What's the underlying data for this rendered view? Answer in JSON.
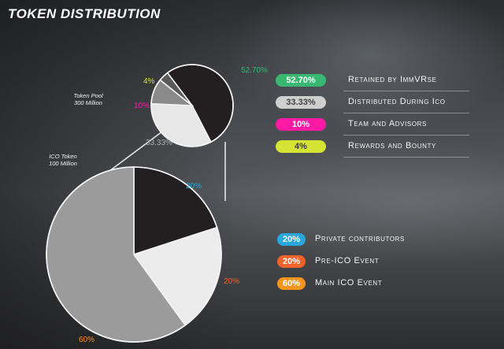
{
  "page": {
    "title": "TOKEN DISTRIBUTION"
  },
  "notes": {
    "pool_title": "Token Pool",
    "pool_amount": "300 Million",
    "ico_title": "ICO Token",
    "ico_amount": "100 Million"
  },
  "chart_data": [
    {
      "type": "pie",
      "title": "",
      "slices": [
        {
          "label": "Retained by ImmVRse",
          "value": 52.7,
          "pct_text": "52.70%",
          "color": "#231f20",
          "label_color": "#38b871",
          "pill_color": "#38b871",
          "pill_text_color": "#ffffff"
        },
        {
          "label": "Distributed During Ico",
          "value": 33.33,
          "pct_text": "33.33%",
          "color": "#e7e7e7",
          "label_color": "#b0b0b0",
          "pill_color": "#cfcfcf",
          "pill_text_color": "#444444"
        },
        {
          "label": "Team and Advisors",
          "value": 10,
          "pct_text": "10%",
          "color": "#8a8a8a",
          "label_color": "#ff1aa6",
          "pill_color": "#ff1aa6",
          "pill_text_color": "#ffffff"
        },
        {
          "label": "Rewards and Bounty",
          "value": 4,
          "pct_text": "4%",
          "color": "#5a5a5a",
          "label_color": "#d5e335",
          "pill_color": "#d5e335",
          "pill_text_color": "#3a3a3a"
        }
      ]
    },
    {
      "type": "pie",
      "title": "",
      "slices": [
        {
          "label": "Private contributors",
          "value": 20,
          "pct_text": "20%",
          "color": "#231f20",
          "label_color": "#29a8e0",
          "pill_color": "#29a8e0",
          "pill_text_color": "#ffffff"
        },
        {
          "label": "Pre-ICO Event",
          "value": 20,
          "pct_text": "20%",
          "color": "#ececec",
          "label_color": "#f0632a",
          "pill_color": "#f0632a",
          "pill_text_color": "#ffffff"
        },
        {
          "label": "Main ICO Event",
          "value": 60,
          "pct_text": "60%",
          "color": "#9b9b9c",
          "label_color": "#f7941d",
          "pill_color": "#f7941d",
          "pill_text_color": "#ffffff"
        }
      ]
    }
  ]
}
